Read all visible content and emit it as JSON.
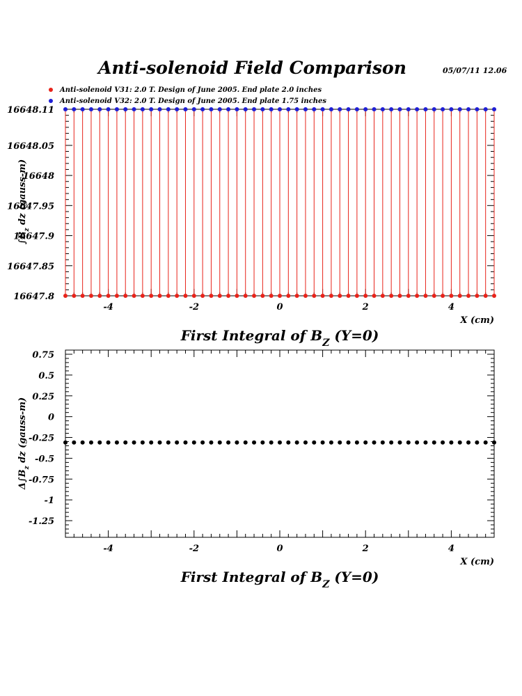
{
  "header": {
    "title": "Anti-solenoid Field Comparison",
    "datestamp": "05/07/11   12.06"
  },
  "legend": [
    {
      "label": "Anti-solenoid V31: 2.0 T. Design of June 2005. End plate 2.0 inches",
      "color": "#e8231a"
    },
    {
      "label": "Anti-solenoid V32: 2.0 T. Design of June 2005. End plate 1.75 inches",
      "color": "#1f1fd6"
    }
  ],
  "chart_data": [
    {
      "type": "scatter",
      "title": "First Integral of B_Z (Y=0)",
      "title_parts": {
        "main": "First Integral of B",
        "sub": "Z",
        "tail": " (Y=0)"
      },
      "xlabel": "X (cm)",
      "ylabel": "∫B_z dz  (gauss-m)",
      "ylabel_parts": {
        "pre": "∫B",
        "sub": "z",
        "post": " dz  (gauss-m)"
      },
      "xlim": [
        -5,
        5
      ],
      "ylim": [
        16647.8,
        16648.11
      ],
      "xticks": [
        -4,
        -2,
        0,
        2,
        4
      ],
      "yticks": [
        16647.8,
        16647.85,
        16647.9,
        16647.95,
        16648,
        16648.05,
        16648.11
      ],
      "ytick_labels": [
        "16647.8",
        "16647.85",
        "16647.9",
        "16647.95",
        "16648",
        "16648.05",
        "16648.11"
      ],
      "x": [
        -5.0,
        -4.8,
        -4.6,
        -4.4,
        -4.2,
        -4.0,
        -3.8,
        -3.6,
        -3.4,
        -3.2,
        -3.0,
        -2.8,
        -2.6,
        -2.4,
        -2.2,
        -2.0,
        -1.8,
        -1.6,
        -1.4,
        -1.2,
        -1.0,
        -0.8,
        -0.6,
        -0.4,
        -0.2,
        0.0,
        0.2,
        0.4,
        0.6,
        0.8,
        1.0,
        1.2,
        1.4,
        1.6,
        1.8,
        2.0,
        2.2,
        2.4,
        2.6,
        2.8,
        3.0,
        3.2,
        3.4,
        3.6,
        3.8,
        4.0,
        4.2,
        4.4,
        4.6,
        4.8,
        5.0
      ],
      "series": [
        {
          "color": "#e8231a",
          "marker": "dot-with-error-bar",
          "values": [
            16647.8,
            16647.8,
            16647.8,
            16647.8,
            16647.8,
            16647.8,
            16647.8,
            16647.8,
            16647.8,
            16647.8,
            16647.8,
            16647.8,
            16647.8,
            16647.8,
            16647.8,
            16647.8,
            16647.8,
            16647.8,
            16647.8,
            16647.8,
            16647.8,
            16647.8,
            16647.8,
            16647.8,
            16647.8,
            16647.8,
            16647.8,
            16647.8,
            16647.8,
            16647.8,
            16647.8,
            16647.8,
            16647.8,
            16647.8,
            16647.8,
            16647.8,
            16647.8,
            16647.8,
            16647.8,
            16647.8,
            16647.8,
            16647.8,
            16647.8,
            16647.8,
            16647.8,
            16647.8,
            16647.8,
            16647.8,
            16647.8,
            16647.8,
            16647.8
          ]
        },
        {
          "color": "#1f1fd6",
          "marker": "dot",
          "values": [
            16648.11,
            16648.11,
            16648.11,
            16648.11,
            16648.11,
            16648.11,
            16648.11,
            16648.11,
            16648.11,
            16648.11,
            16648.11,
            16648.11,
            16648.11,
            16648.11,
            16648.11,
            16648.11,
            16648.11,
            16648.11,
            16648.11,
            16648.11,
            16648.11,
            16648.11,
            16648.11,
            16648.11,
            16648.11,
            16648.11,
            16648.11,
            16648.11,
            16648.11,
            16648.11,
            16648.11,
            16648.11,
            16648.11,
            16648.11,
            16648.11,
            16648.11,
            16648.11,
            16648.11,
            16648.11,
            16648.11,
            16648.11,
            16648.11,
            16648.11,
            16648.11,
            16648.11,
            16648.11,
            16648.11,
            16648.11,
            16648.11,
            16648.11,
            16648.11
          ]
        }
      ],
      "grid": false
    },
    {
      "type": "scatter",
      "title": "First Integral of B_Z (Y=0)",
      "title_parts": {
        "main": "First Integral of B",
        "sub": "Z",
        "tail": " (Y=0)"
      },
      "xlabel": "X (cm)",
      "ylabel": "Δ∫B_z dz  (gauss-m)",
      "ylabel_parts": {
        "pre": "Δ∫B",
        "sub": "z",
        "post": " dz  (gauss-m)"
      },
      "xlim": [
        -5,
        5
      ],
      "ylim": [
        -1.45,
        0.8
      ],
      "xticks": [
        -4,
        -2,
        0,
        2,
        4
      ],
      "yticks": [
        -1.25,
        -1,
        -0.75,
        -0.5,
        -0.25,
        0,
        0.25,
        0.5,
        0.75
      ],
      "ytick_labels": [
        "-1.25",
        "-1",
        "-0.75",
        "-0.5",
        "-0.25",
        "0",
        "0.25",
        "0.5",
        "0.75"
      ],
      "x": [
        -5.0,
        -4.8,
        -4.6,
        -4.4,
        -4.2,
        -4.0,
        -3.8,
        -3.6,
        -3.4,
        -3.2,
        -3.0,
        -2.8,
        -2.6,
        -2.4,
        -2.2,
        -2.0,
        -1.8,
        -1.6,
        -1.4,
        -1.2,
        -1.0,
        -0.8,
        -0.6,
        -0.4,
        -0.2,
        0.0,
        0.2,
        0.4,
        0.6,
        0.8,
        1.0,
        1.2,
        1.4,
        1.6,
        1.8,
        2.0,
        2.2,
        2.4,
        2.6,
        2.8,
        3.0,
        3.2,
        3.4,
        3.6,
        3.8,
        4.0,
        4.2,
        4.4,
        4.6,
        4.8,
        5.0
      ],
      "series": [
        {
          "color": "#000000",
          "marker": "dot",
          "values": [
            -0.31,
            -0.31,
            -0.31,
            -0.31,
            -0.31,
            -0.31,
            -0.31,
            -0.31,
            -0.31,
            -0.31,
            -0.31,
            -0.31,
            -0.31,
            -0.31,
            -0.31,
            -0.31,
            -0.31,
            -0.31,
            -0.31,
            -0.31,
            -0.31,
            -0.31,
            -0.31,
            -0.31,
            -0.31,
            -0.31,
            -0.31,
            -0.31,
            -0.31,
            -0.31,
            -0.31,
            -0.31,
            -0.31,
            -0.31,
            -0.31,
            -0.31,
            -0.31,
            -0.31,
            -0.31,
            -0.31,
            -0.31,
            -0.31,
            -0.31,
            -0.31,
            -0.31,
            -0.31,
            -0.31,
            -0.31,
            -0.31,
            -0.31,
            -0.31
          ]
        }
      ],
      "grid": false
    }
  ]
}
